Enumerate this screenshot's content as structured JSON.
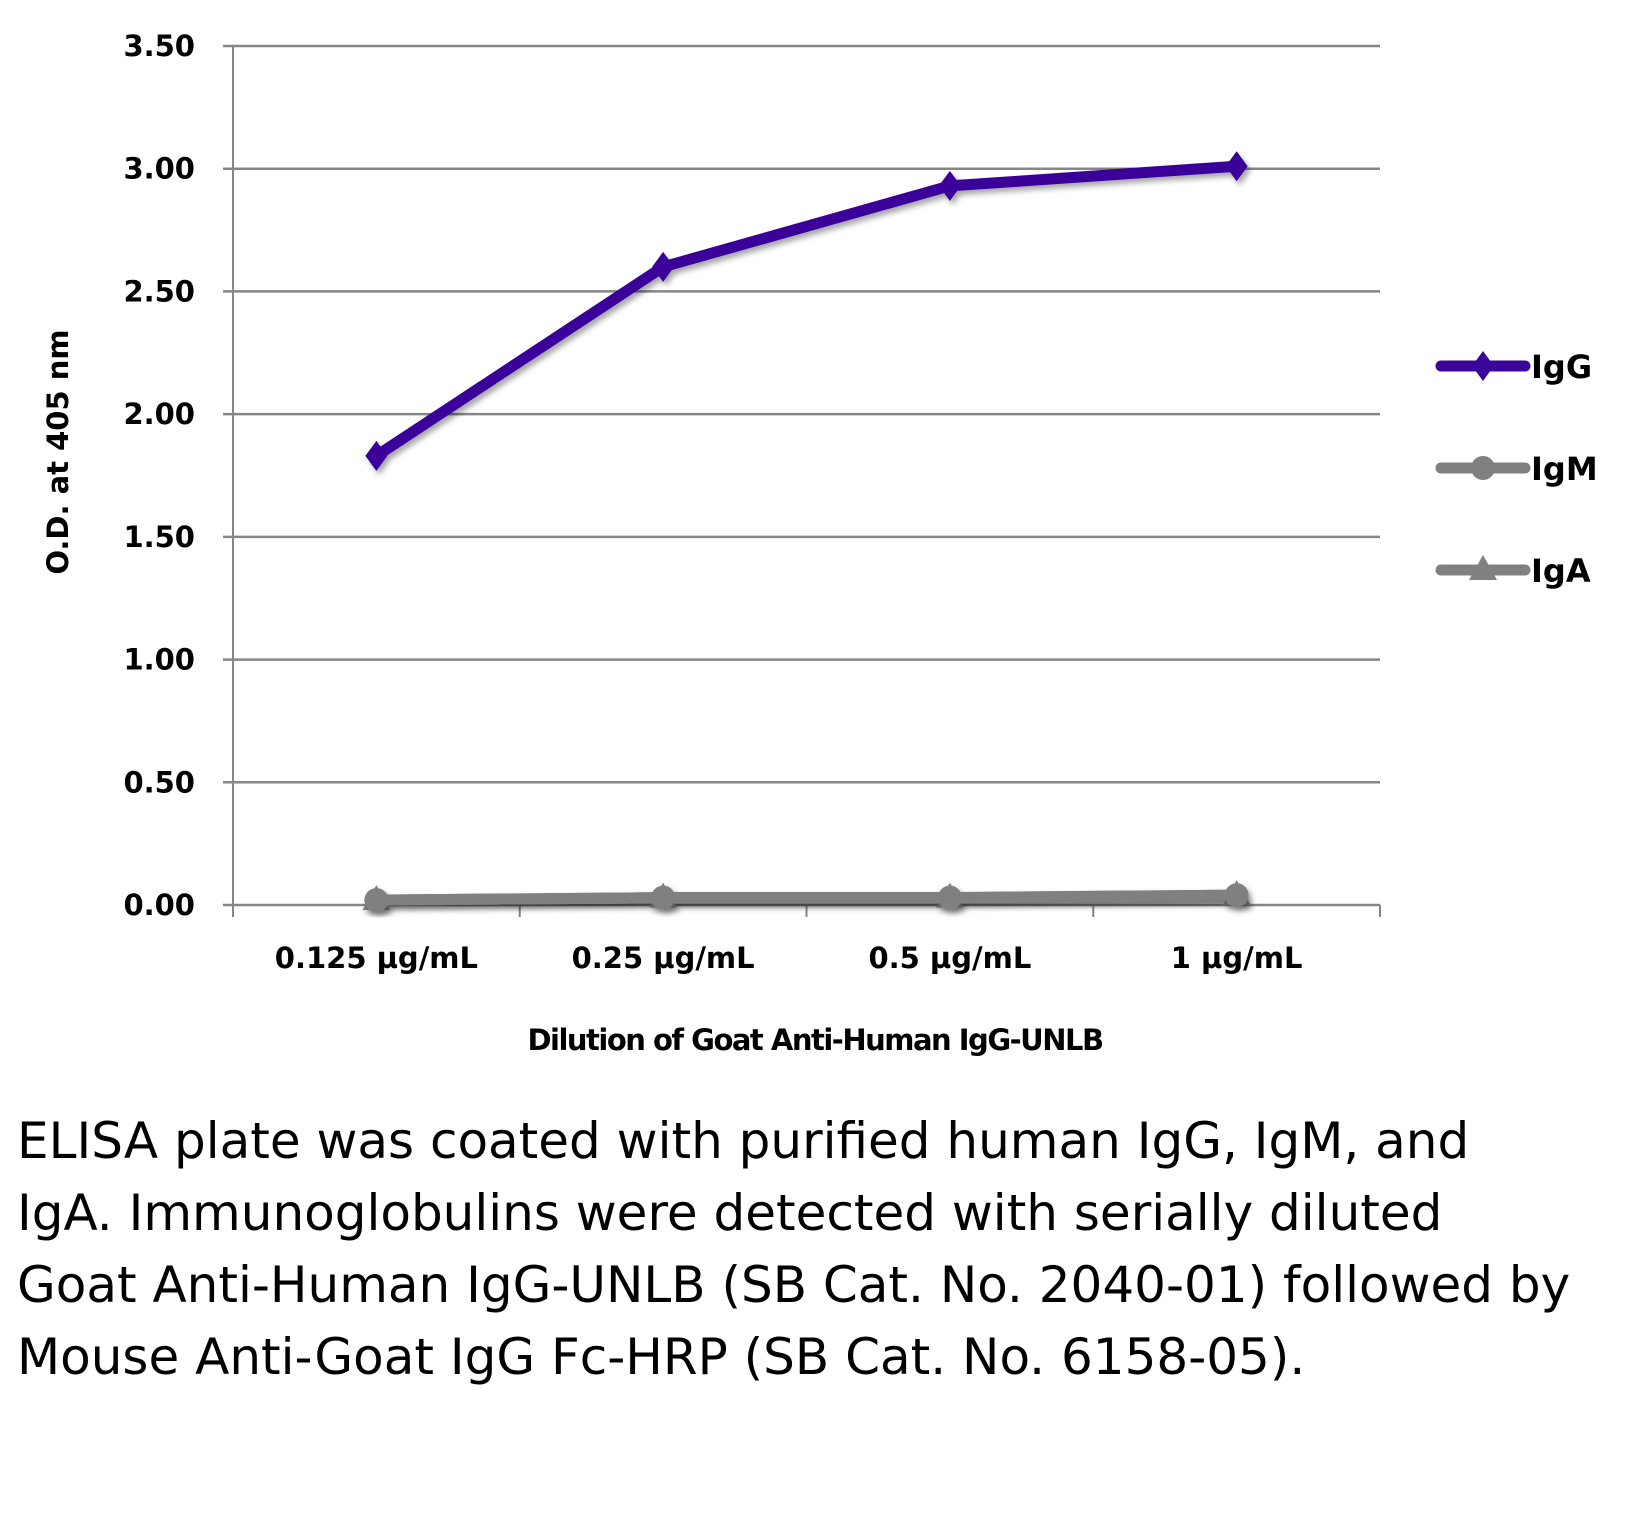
{
  "chart_data": {
    "type": "line",
    "title": "",
    "xlabel": "Dilution of Goat Anti-Human IgG-UNLB",
    "ylabel": "O.D. at 405 nm",
    "categories": [
      "0.125 µg/mL",
      "0.25 µg/mL",
      "0.5 µg/mL",
      "1 µg/mL"
    ],
    "ylim": [
      0,
      3.5
    ],
    "yticks": [
      "0.00",
      "0.50",
      "1.00",
      "1.50",
      "2.00",
      "2.50",
      "3.00",
      "3.50"
    ],
    "grid": true,
    "legend_position": "right",
    "series": [
      {
        "name": "IgG",
        "values": [
          1.83,
          2.6,
          2.93,
          3.01
        ],
        "color": "#3a0599",
        "marker": "diamond"
      },
      {
        "name": "IgM",
        "values": [
          0.02,
          0.03,
          0.03,
          0.04
        ],
        "color": "#808080",
        "marker": "circle"
      },
      {
        "name": "IgA",
        "values": [
          0.02,
          0.03,
          0.03,
          0.04
        ],
        "color": "#808080",
        "marker": "triangle"
      }
    ]
  },
  "caption": "ELISA plate was coated with purified human IgG, IgM, and IgA.  Immunoglobulins were detected with serially diluted Goat Anti-Human IgG-UNLB (SB Cat. No. 2040-01) followed by Mouse Anti-Goat IgG Fc-HRP (SB Cat. No. 6158-05)."
}
